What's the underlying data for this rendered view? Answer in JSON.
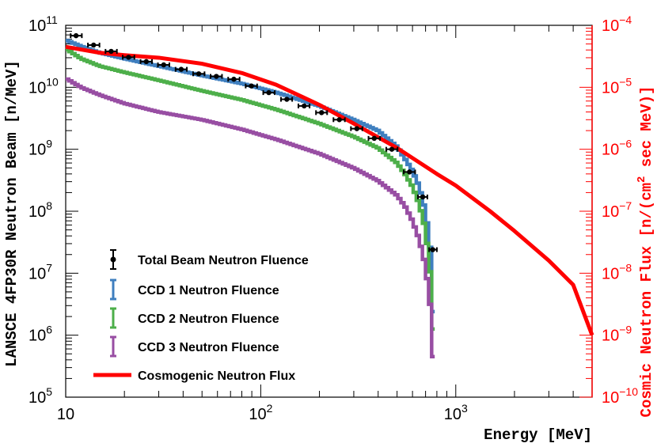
{
  "chart_data": {
    "type": "line",
    "x_axis": {
      "title": "Energy [MeV]",
      "scale": "log",
      "range": [
        10,
        5000
      ],
      "tick_labels": [
        {
          "value": 10,
          "base": "10",
          "exp": ""
        },
        {
          "value": 100,
          "base": "10",
          "exp": "2"
        },
        {
          "value": 1000,
          "base": "10",
          "exp": "3"
        }
      ]
    },
    "y_left_axis": {
      "title": "LANSCE 4FP30R Neutron Beam [n/MeV]",
      "scale": "log",
      "range": [
        100000.0,
        100000000000.0
      ],
      "color": "#000000",
      "tick_labels": [
        {
          "value": 100000000000.0,
          "base": "10",
          "exp": "11"
        },
        {
          "value": 10000000000.0,
          "base": "10",
          "exp": "10"
        },
        {
          "value": 1000000000.0,
          "base": "10",
          "exp": "9"
        },
        {
          "value": 100000000.0,
          "base": "10",
          "exp": "8"
        },
        {
          "value": 10000000.0,
          "base": "10",
          "exp": "7"
        },
        {
          "value": 1000000.0,
          "base": "10",
          "exp": "6"
        },
        {
          "value": 100000.0,
          "base": "10",
          "exp": "5"
        }
      ]
    },
    "y_right_axis": {
      "title_prefix": "Cosmic Neutron Flux [n/(cm",
      "title_exp": "2",
      "title_suffix": " sec MeV)]",
      "scale": "log",
      "range": [
        1e-10,
        0.0001
      ],
      "color": "#ff0000",
      "tick_labels": [
        {
          "value": 0.0001,
          "base": "10",
          "exp": "−4"
        },
        {
          "value": 1e-05,
          "base": "10",
          "exp": "−5"
        },
        {
          "value": 1e-06,
          "base": "10",
          "exp": "−6"
        },
        {
          "value": 1e-07,
          "base": "10",
          "exp": "−7"
        },
        {
          "value": 1e-08,
          "base": "10",
          "exp": "−8"
        },
        {
          "value": 1e-09,
          "base": "10",
          "exp": "−9"
        },
        {
          "value": 1e-10,
          "base": "10",
          "exp": "−10"
        }
      ]
    },
    "legend_position": "bottom-left",
    "series": [
      {
        "name": "Total Beam Neutron Fluence",
        "kind": "points_with_xerr",
        "color": "#000000",
        "axis": "left",
        "points": [
          {
            "x": 11.3,
            "xlo": 10.6,
            "xhi": 12.1,
            "y": 68000000000.0
          },
          {
            "x": 13.9,
            "xlo": 13.0,
            "xhi": 14.9,
            "y": 48000000000.0
          },
          {
            "x": 17.1,
            "xlo": 16.0,
            "xhi": 18.3,
            "y": 38000000000.0
          },
          {
            "x": 21.0,
            "xlo": 19.6,
            "xhi": 22.5,
            "y": 30500000000.0
          },
          {
            "x": 25.9,
            "xlo": 24.2,
            "xhi": 27.7,
            "y": 26000000000.0
          },
          {
            "x": 31.8,
            "xlo": 29.7,
            "xhi": 34.0,
            "y": 23000000000.0
          },
          {
            "x": 39.1,
            "xlo": 36.6,
            "xhi": 41.8,
            "y": 19500000000.0
          },
          {
            "x": 48.1,
            "xlo": 45.0,
            "xhi": 51.5,
            "y": 16500000000.0
          },
          {
            "x": 59.2,
            "xlo": 55.3,
            "xhi": 63.3,
            "y": 15000000000.0
          },
          {
            "x": 72.8,
            "xlo": 68.1,
            "xhi": 77.9,
            "y": 13500000000.0
          },
          {
            "x": 89.6,
            "xlo": 83.7,
            "xhi": 95.8,
            "y": 10500000000.0
          },
          {
            "x": 110,
            "xlo": 103,
            "xhi": 118,
            "y": 8200000000.0
          },
          {
            "x": 136,
            "xlo": 127,
            "xhi": 145,
            "y": 6400000000.0
          },
          {
            "x": 167,
            "xlo": 156,
            "xhi": 178,
            "y": 5000000000.0
          },
          {
            "x": 205,
            "xlo": 192,
            "xhi": 219,
            "y": 3900000000.0
          },
          {
            "x": 253,
            "xlo": 236,
            "xhi": 270,
            "y": 3000000000.0
          },
          {
            "x": 311,
            "xlo": 290,
            "xhi": 332,
            "y": 2150000000.0
          },
          {
            "x": 382,
            "xlo": 357,
            "xhi": 409,
            "y": 1500000000.0
          },
          {
            "x": 470,
            "xlo": 440,
            "xhi": 503,
            "y": 1000000000.0
          },
          {
            "x": 579,
            "xlo": 541,
            "xhi": 619,
            "y": 430000000.0
          },
          {
            "x": 677,
            "xlo": 640,
            "xhi": 715,
            "y": 170000000.0
          },
          {
            "x": 762,
            "xlo": 730,
            "xhi": 800,
            "y": 24000000.0
          }
        ]
      },
      {
        "name": "CCD 1 Neutron Fluence",
        "kind": "step_hist",
        "color": "#3f7fbf",
        "axis": "left",
        "points": [
          {
            "x": 10,
            "y": 58000000000.0
          },
          {
            "x": 12,
            "y": 46000000000.0
          },
          {
            "x": 15,
            "y": 36000000000.0
          },
          {
            "x": 20,
            "y": 29000000000.0
          },
          {
            "x": 30,
            "y": 22000000000.0
          },
          {
            "x": 50,
            "y": 15500000000.0
          },
          {
            "x": 80,
            "y": 11500000000.0
          },
          {
            "x": 120,
            "y": 8300000000.0
          },
          {
            "x": 200,
            "y": 5000000000.0
          },
          {
            "x": 300,
            "y": 3000000000.0
          },
          {
            "x": 400,
            "y": 2000000000.0
          },
          {
            "x": 500,
            "y": 1100000000.0
          },
          {
            "x": 550,
            "y": 700000000.0
          },
          {
            "x": 600,
            "y": 450000000.0
          },
          {
            "x": 650,
            "y": 250000000.0
          },
          {
            "x": 700,
            "y": 100000000.0
          },
          {
            "x": 740,
            "y": 25000000.0
          },
          {
            "x": 765,
            "y": 3000000.0
          },
          {
            "x": 780,
            "y": 100000.0
          }
        ]
      },
      {
        "name": "CCD 2 Neutron Fluence",
        "kind": "step_hist",
        "color": "#4daf4a",
        "axis": "left",
        "points": [
          {
            "x": 10,
            "y": 42000000000.0
          },
          {
            "x": 12,
            "y": 29000000000.0
          },
          {
            "x": 15,
            "y": 22000000000.0
          },
          {
            "x": 20,
            "y": 17500000000.0
          },
          {
            "x": 30,
            "y": 13000000000.0
          },
          {
            "x": 50,
            "y": 8800000000.0
          },
          {
            "x": 80,
            "y": 6300000000.0
          },
          {
            "x": 120,
            "y": 4400000000.0
          },
          {
            "x": 200,
            "y": 2600000000.0
          },
          {
            "x": 300,
            "y": 1600000000.0
          },
          {
            "x": 400,
            "y": 1050000000.0
          },
          {
            "x": 500,
            "y": 600000000.0
          },
          {
            "x": 550,
            "y": 400000000.0
          },
          {
            "x": 600,
            "y": 250000000.0
          },
          {
            "x": 650,
            "y": 130000000.0
          },
          {
            "x": 700,
            "y": 50000000.0
          },
          {
            "x": 740,
            "y": 10000000.0
          },
          {
            "x": 765,
            "y": 1500000.0
          },
          {
            "x": 780,
            "y": 100000.0
          }
        ]
      },
      {
        "name": "CCD 3 Neutron Fluence",
        "kind": "step_hist",
        "color": "#984ea3",
        "axis": "left",
        "points": [
          {
            "x": 10,
            "y": 14000000000.0
          },
          {
            "x": 12,
            "y": 10000000000.0
          },
          {
            "x": 15,
            "y": 7500000000.0
          },
          {
            "x": 20,
            "y": 5500000000.0
          },
          {
            "x": 30,
            "y": 4000000000.0
          },
          {
            "x": 50,
            "y": 3000000000.0
          },
          {
            "x": 80,
            "y": 2100000000.0
          },
          {
            "x": 120,
            "y": 1450000000.0
          },
          {
            "x": 200,
            "y": 850000000.0
          },
          {
            "x": 300,
            "y": 500000000.0
          },
          {
            "x": 400,
            "y": 310000000.0
          },
          {
            "x": 500,
            "y": 180000000.0
          },
          {
            "x": 550,
            "y": 120000000.0
          },
          {
            "x": 600,
            "y": 70000000.0
          },
          {
            "x": 650,
            "y": 35000000.0
          },
          {
            "x": 700,
            "y": 13000000.0
          },
          {
            "x": 740,
            "y": 3000000.0
          },
          {
            "x": 765,
            "y": 500000.0
          },
          {
            "x": 780,
            "y": 100000.0
          }
        ]
      },
      {
        "name": "Cosmogenic Neutron Flux",
        "kind": "line",
        "color": "#ff0000",
        "axis": "right",
        "points": [
          {
            "x": 10,
            "y": 4.5e-05
          },
          {
            "x": 15,
            "y": 3.6e-05
          },
          {
            "x": 20,
            "y": 3.3e-05
          },
          {
            "x": 30,
            "y": 3e-05
          },
          {
            "x": 50,
            "y": 2.4e-05
          },
          {
            "x": 80,
            "y": 1.7e-05
          },
          {
            "x": 120,
            "y": 1.1e-05
          },
          {
            "x": 200,
            "y": 5.2e-06
          },
          {
            "x": 300,
            "y": 2.6e-06
          },
          {
            "x": 500,
            "y": 1.05e-06
          },
          {
            "x": 800,
            "y": 4e-07
          },
          {
            "x": 1000,
            "y": 2.6e-07
          },
          {
            "x": 1500,
            "y": 1e-07
          },
          {
            "x": 2000,
            "y": 4.8e-08
          },
          {
            "x": 3000,
            "y": 1.6e-08
          },
          {
            "x": 4000,
            "y": 6.5e-09
          },
          {
            "x": 5000,
            "y": 1e-09
          }
        ]
      }
    ]
  }
}
